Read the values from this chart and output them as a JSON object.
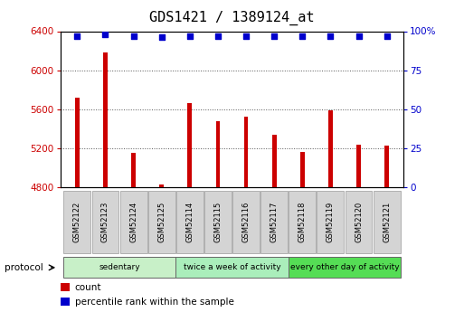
{
  "title": "GDS1421 / 1389124_at",
  "samples": [
    "GSM52122",
    "GSM52123",
    "GSM52124",
    "GSM52125",
    "GSM52114",
    "GSM52115",
    "GSM52116",
    "GSM52117",
    "GSM52118",
    "GSM52119",
    "GSM52120",
    "GSM52121"
  ],
  "count_values": [
    5720,
    6180,
    5150,
    4830,
    5660,
    5480,
    5520,
    5340,
    5160,
    5590,
    5240,
    5230
  ],
  "percentile_values": [
    97,
    98,
    97,
    96,
    97,
    97,
    97,
    97,
    97,
    97,
    97,
    97
  ],
  "ylim_left": [
    4800,
    6400
  ],
  "ylim_right": [
    0,
    100
  ],
  "yticks_left": [
    4800,
    5200,
    5600,
    6000,
    6400
  ],
  "yticks_right": [
    0,
    25,
    50,
    75,
    100
  ],
  "bar_color": "#cc0000",
  "dot_color": "#0000cc",
  "group_labels": [
    "sedentary",
    "twice a week of activity",
    "every other day of activity"
  ],
  "group_ranges": [
    [
      0,
      4
    ],
    [
      4,
      8
    ],
    [
      8,
      12
    ]
  ],
  "group_colors": [
    "#c8f0c8",
    "#aaeebb",
    "#55dd55"
  ],
  "protocol_label": "protocol",
  "legend_count_label": "count",
  "legend_pct_label": "percentile rank within the sample",
  "title_fontsize": 11,
  "axis_label_color_left": "#cc0000",
  "axis_label_color_right": "#0000cc",
  "bar_width": 0.15
}
